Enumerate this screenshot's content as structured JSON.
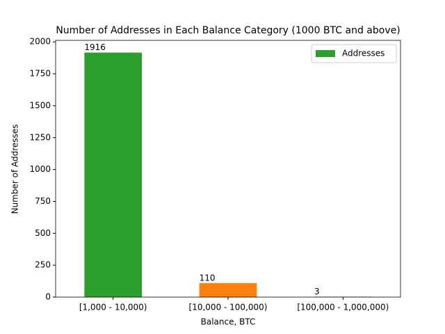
{
  "chart_data": {
    "type": "bar",
    "title": "Number of Addresses in Each Balance Category (1000 BTC and above)",
    "x_label": "Balance, BTC",
    "y_label": "Number of Addresses",
    "categories": [
      "[1,000 - 10,000)",
      "[10,000 - 100,000)",
      "[100,000 - 1,000,000)"
    ],
    "series": [
      {
        "name": "Addresses",
        "color": "#2ca02c",
        "bar_colors": [
          "#2ca02c",
          "#ff7f0e",
          "#d62728"
        ],
        "values": [
          1916,
          110,
          3
        ]
      }
    ],
    "ylim": [
      0,
      2012
    ],
    "yticks": [
      0,
      250,
      500,
      750,
      1000,
      1250,
      1500,
      1750,
      2000
    ],
    "legend": "upper right"
  }
}
